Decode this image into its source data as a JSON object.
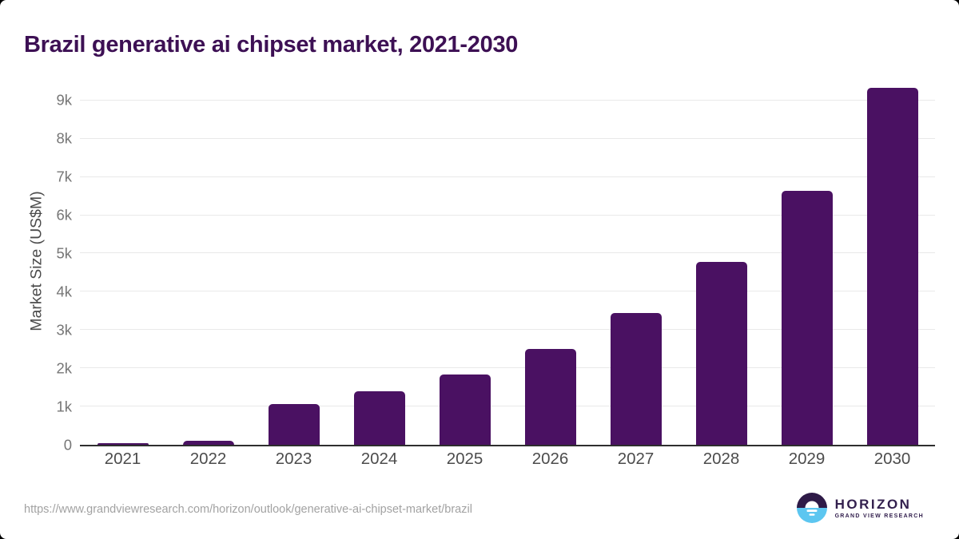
{
  "title": "Brazil generative ai chipset market, 2021-2030",
  "chart_data": {
    "type": "bar",
    "title": "Brazil generative ai chipset market, 2021-2030",
    "categories": [
      "2021",
      "2022",
      "2023",
      "2024",
      "2025",
      "2026",
      "2027",
      "2028",
      "2029",
      "2030"
    ],
    "values": [
      45,
      112,
      1060,
      1395,
      1840,
      2510,
      3450,
      4790,
      6640,
      9320
    ],
    "xlabel": "",
    "ylabel": "Market Size (US$M)",
    "ylim": [
      0,
      9600
    ],
    "yticks": [
      {
        "value": 0,
        "label": "0"
      },
      {
        "value": 1000,
        "label": "1k"
      },
      {
        "value": 2000,
        "label": "2k"
      },
      {
        "value": 3000,
        "label": "3k"
      },
      {
        "value": 4000,
        "label": "4k"
      },
      {
        "value": 5000,
        "label": "5k"
      },
      {
        "value": 6000,
        "label": "6k"
      },
      {
        "value": 7000,
        "label": "7k"
      },
      {
        "value": 8000,
        "label": "8k"
      },
      {
        "value": 9000,
        "label": "9k"
      }
    ],
    "grid": "horizontal",
    "legend": "none",
    "bar_color": "#4a1162"
  },
  "footer": {
    "source_url": "https://www.grandviewresearch.com/horizon/outlook/generative-ai-chipset-market/brazil",
    "logo": {
      "brand": "HORIZON",
      "tagline": "GRAND VIEW RESEARCH"
    }
  },
  "colors": {
    "bar": "#4a1162",
    "title_text": "#3d1054",
    "axis_line": "#2e2e2e",
    "gridline": "#e9e9e9",
    "tick_label": "#767676",
    "axis_label": "#4b4b4b",
    "x_label": "#4c4c4c",
    "url_text": "#a2a2a2",
    "logo_purple": "#2e1a47",
    "logo_blue": "#5cc6f0"
  }
}
